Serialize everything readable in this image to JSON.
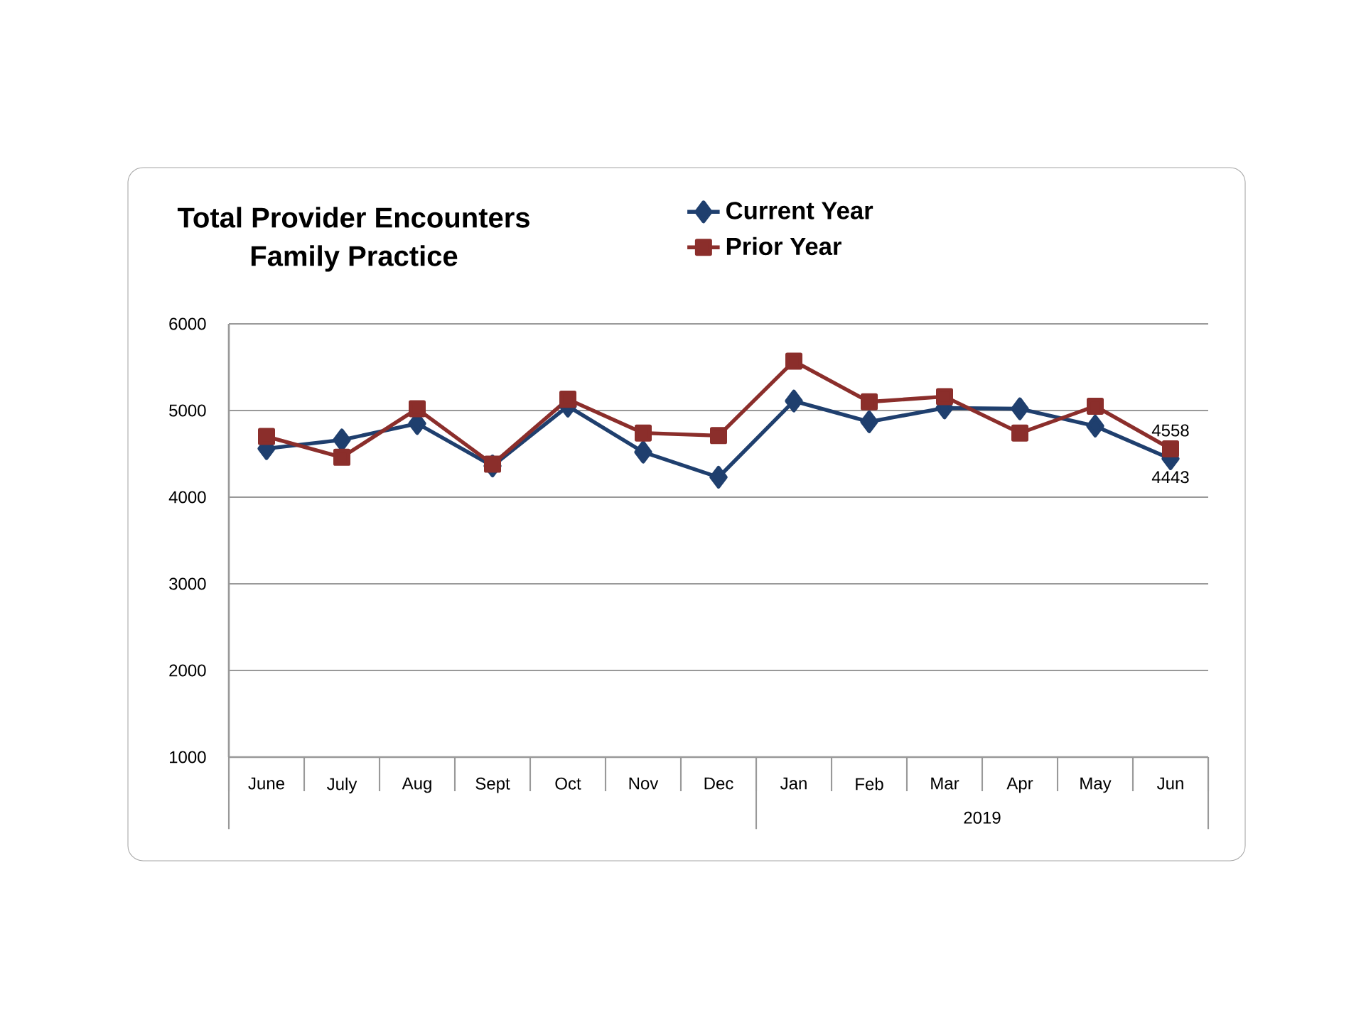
{
  "chart_data": {
    "type": "line",
    "title": "Total Provider Encounters",
    "subtitle": "Family Practice",
    "categories": [
      "June",
      "July",
      "Aug",
      "Sept",
      "Oct",
      "Nov",
      "Dec",
      "Jan",
      "Feb",
      "Mar",
      "Apr",
      "May",
      "Jun"
    ],
    "annotations": [
      "2019"
    ],
    "series": [
      {
        "name": "Current Year",
        "color": "#1f3f6e",
        "marker": "diamond",
        "values": [
          4560,
          4660,
          4850,
          4360,
          5050,
          4520,
          4230,
          5110,
          4870,
          5030,
          5020,
          4820,
          4443
        ],
        "value_labels": [
          null,
          null,
          null,
          null,
          null,
          null,
          null,
          null,
          null,
          null,
          null,
          null,
          "4443"
        ]
      },
      {
        "name": "Prior Year",
        "color": "#8b2e2b",
        "marker": "square",
        "values": [
          4700,
          4460,
          5020,
          4380,
          5130,
          4740,
          4710,
          5570,
          5100,
          5160,
          4740,
          5050,
          4558
        ],
        "value_labels": [
          null,
          null,
          null,
          null,
          null,
          null,
          null,
          null,
          null,
          null,
          null,
          null,
          "4558"
        ]
      }
    ],
    "ylim": [
      1000,
      6000
    ],
    "yticks": [
      1000,
      2000,
      3000,
      4000,
      5000,
      6000
    ],
    "grid": "y",
    "legend": "top"
  }
}
